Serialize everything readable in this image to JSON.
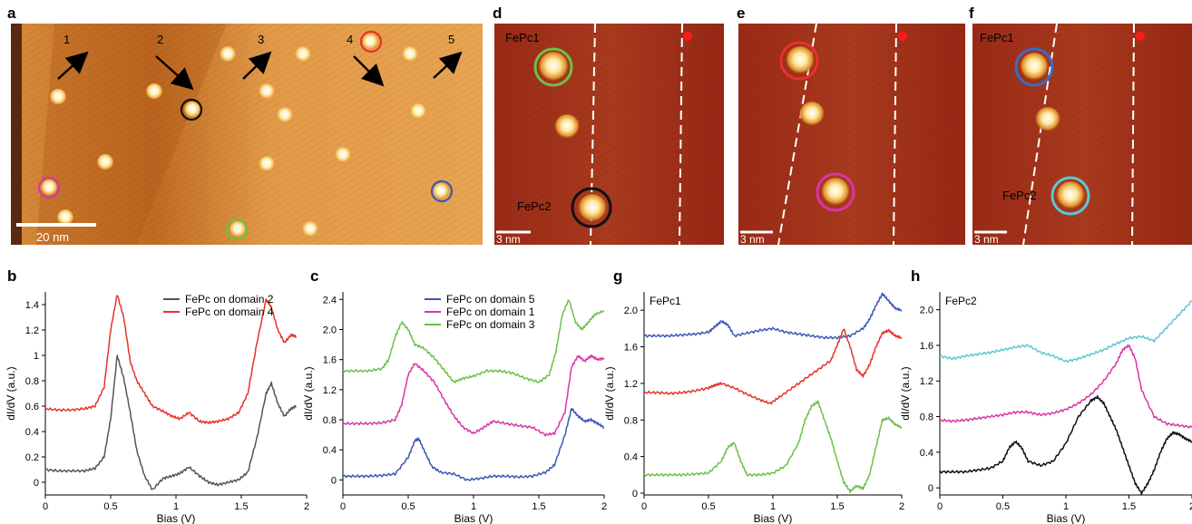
{
  "panel_labels": {
    "a": "a",
    "b": "b",
    "c": "c",
    "d": "d",
    "e": "e",
    "f": "f",
    "g": "g",
    "h": "h"
  },
  "panel_a": {
    "domain_numbers": [
      "1",
      "2",
      "3",
      "4",
      "5"
    ],
    "scale_bar": "20 nm",
    "colors": {
      "background": "#d88a3a",
      "dark_band": "#b8621e",
      "molecule": "#fff3c0",
      "ring_black": "#111111",
      "ring_red": "#e8312a",
      "ring_magenta": "#d935a8",
      "ring_blue": "#3a58b8",
      "ring_green": "#6cc04a"
    }
  },
  "panel_d": {
    "label_top": "FePc1",
    "label_bottom": "FePc2",
    "scale_bar": "3 nm"
  },
  "panel_e": {
    "scale_bar": "3 nm"
  },
  "panel_f": {
    "label_top": "FePc1",
    "label_bottom": "FePc2",
    "scale_bar": "3 nm"
  },
  "chart_data": [
    {
      "panel": "b",
      "type": "line",
      "xlabel": "Bias (V)",
      "ylabel": "dI/dV (a.u.)",
      "xlim": [
        0,
        2
      ],
      "ylim": [
        -0.1,
        1.5
      ],
      "xticks": [
        "0",
        "0.5",
        "1",
        "1.5",
        "2"
      ],
      "yticks": [
        "0",
        "0.2",
        "0.4",
        "0.6",
        "0.8",
        "1",
        "1.2",
        "1.4"
      ],
      "legend_position": "top-right",
      "series": [
        {
          "name": "FePc on domain 2",
          "color": "#555555",
          "x": [
            0,
            0.1,
            0.2,
            0.3,
            0.38,
            0.45,
            0.5,
            0.55,
            0.6,
            0.65,
            0.7,
            0.76,
            0.82,
            0.9,
            0.97,
            1.03,
            1.1,
            1.18,
            1.25,
            1.32,
            1.4,
            1.48,
            1.55,
            1.62,
            1.69,
            1.73,
            1.78,
            1.83,
            1.88,
            1.92
          ],
          "y": [
            0.1,
            0.09,
            0.09,
            0.09,
            0.11,
            0.2,
            0.5,
            1.0,
            0.82,
            0.55,
            0.25,
            0.05,
            -0.06,
            0.03,
            0.05,
            0.07,
            0.12,
            0.05,
            0.0,
            -0.02,
            0.0,
            0.02,
            0.08,
            0.35,
            0.7,
            0.78,
            0.62,
            0.52,
            0.58,
            0.6
          ]
        },
        {
          "name": "FePc on domain 4",
          "color": "#e8312a",
          "x": [
            0,
            0.1,
            0.2,
            0.3,
            0.38,
            0.45,
            0.5,
            0.55,
            0.6,
            0.65,
            0.7,
            0.76,
            0.82,
            0.9,
            0.97,
            1.03,
            1.1,
            1.18,
            1.25,
            1.32,
            1.4,
            1.48,
            1.55,
            1.62,
            1.69,
            1.73,
            1.78,
            1.83,
            1.88,
            1.92
          ],
          "y": [
            0.58,
            0.57,
            0.57,
            0.58,
            0.6,
            0.75,
            1.2,
            1.48,
            1.3,
            0.95,
            0.8,
            0.7,
            0.6,
            0.56,
            0.52,
            0.5,
            0.55,
            0.48,
            0.47,
            0.48,
            0.5,
            0.55,
            0.7,
            1.1,
            1.44,
            1.38,
            1.2,
            1.1,
            1.16,
            1.15
          ]
        }
      ]
    },
    {
      "panel": "c",
      "type": "line",
      "xlabel": "Bias (V)",
      "ylabel": "dI/dV (a.u.)",
      "xlim": [
        0,
        2
      ],
      "ylim": [
        -0.2,
        2.5
      ],
      "xticks": [
        "0",
        "0.5",
        "1",
        "1.5",
        "2"
      ],
      "yticks": [
        "0",
        "0.4",
        "0.8",
        "1.2",
        "1.6",
        "2.0",
        "2.4"
      ],
      "legend_position": "top-right",
      "series": [
        {
          "name": "FePc on domain 5",
          "color": "#3a58b8",
          "x": [
            0,
            0.1,
            0.2,
            0.3,
            0.4,
            0.5,
            0.55,
            0.58,
            0.62,
            0.68,
            0.75,
            0.85,
            0.95,
            1.05,
            1.15,
            1.25,
            1.35,
            1.45,
            1.55,
            1.62,
            1.7,
            1.75,
            1.8,
            1.85,
            1.9,
            1.95,
            2.0
          ],
          "y": [
            0.05,
            0.05,
            0.05,
            0.06,
            0.08,
            0.3,
            0.52,
            0.55,
            0.4,
            0.18,
            0.1,
            0.08,
            0.0,
            0.02,
            0.05,
            0.05,
            0.04,
            0.05,
            0.1,
            0.2,
            0.6,
            0.95,
            0.85,
            0.78,
            0.8,
            0.75,
            0.7
          ]
        },
        {
          "name": "FePc on domain 1",
          "color": "#d935a8",
          "x": [
            0,
            0.1,
            0.2,
            0.3,
            0.4,
            0.45,
            0.5,
            0.55,
            0.62,
            0.7,
            0.78,
            0.85,
            0.92,
            1.0,
            1.08,
            1.15,
            1.25,
            1.35,
            1.45,
            1.55,
            1.62,
            1.7,
            1.75,
            1.8,
            1.85,
            1.9,
            1.95,
            2.0
          ],
          "y": [
            0.75,
            0.75,
            0.75,
            0.76,
            0.8,
            1.0,
            1.4,
            1.55,
            1.45,
            1.3,
            1.05,
            0.85,
            0.7,
            0.62,
            0.7,
            0.78,
            0.75,
            0.72,
            0.7,
            0.6,
            0.62,
            0.9,
            1.5,
            1.65,
            1.58,
            1.65,
            1.6,
            1.62
          ]
        },
        {
          "name": "FePc on domain 3",
          "color": "#6cc04a",
          "x": [
            0,
            0.1,
            0.2,
            0.3,
            0.35,
            0.4,
            0.45,
            0.5,
            0.55,
            0.62,
            0.7,
            0.78,
            0.85,
            0.92,
            1.0,
            1.1,
            1.2,
            1.3,
            1.4,
            1.5,
            1.58,
            1.63,
            1.68,
            1.73,
            1.78,
            1.83,
            1.88,
            1.93,
            2.0
          ],
          "y": [
            1.45,
            1.45,
            1.45,
            1.48,
            1.6,
            1.9,
            2.1,
            2.0,
            1.8,
            1.75,
            1.62,
            1.45,
            1.3,
            1.35,
            1.38,
            1.45,
            1.45,
            1.42,
            1.35,
            1.3,
            1.4,
            1.7,
            2.2,
            2.4,
            2.1,
            2.0,
            2.1,
            2.2,
            2.25
          ]
        }
      ]
    },
    {
      "panel": "g",
      "type": "line",
      "title": "FePc1",
      "xlabel": "Bias (V)",
      "ylabel": "dI/dV (a.u.)",
      "xlim": [
        0,
        2
      ],
      "ylim": [
        -0.02,
        2.2
      ],
      "xticks": [
        "0",
        "0.5",
        "1",
        "1.5",
        "2"
      ],
      "yticks": [
        "0",
        "0.4",
        "0.8",
        "1.2",
        "1.6",
        "2.0"
      ],
      "series": [
        {
          "name": "",
          "color": "#3a58b8",
          "x": [
            0,
            0.1,
            0.2,
            0.3,
            0.4,
            0.5,
            0.55,
            0.6,
            0.65,
            0.7,
            0.8,
            0.9,
            1.0,
            1.1,
            1.2,
            1.3,
            1.4,
            1.5,
            1.6,
            1.7,
            1.75,
            1.8,
            1.85,
            1.9,
            1.95,
            2.0
          ],
          "y": [
            1.72,
            1.72,
            1.72,
            1.73,
            1.74,
            1.76,
            1.82,
            1.88,
            1.84,
            1.72,
            1.75,
            1.78,
            1.8,
            1.76,
            1.74,
            1.72,
            1.7,
            1.7,
            1.72,
            1.8,
            1.9,
            2.05,
            2.18,
            2.1,
            2.02,
            2.0
          ]
        },
        {
          "name": "",
          "color": "#e8312a",
          "x": [
            0,
            0.1,
            0.2,
            0.3,
            0.4,
            0.5,
            0.55,
            0.6,
            0.7,
            0.8,
            0.9,
            0.98,
            1.05,
            1.15,
            1.25,
            1.35,
            1.45,
            1.5,
            1.55,
            1.6,
            1.65,
            1.7,
            1.75,
            1.8,
            1.85,
            1.9,
            1.95,
            2.0
          ],
          "y": [
            1.1,
            1.1,
            1.09,
            1.1,
            1.12,
            1.15,
            1.18,
            1.2,
            1.15,
            1.08,
            1.02,
            0.98,
            1.05,
            1.15,
            1.25,
            1.35,
            1.45,
            1.62,
            1.8,
            1.6,
            1.35,
            1.28,
            1.4,
            1.6,
            1.75,
            1.78,
            1.72,
            1.7
          ]
        },
        {
          "name": "",
          "color": "#6cc04a",
          "x": [
            0,
            0.1,
            0.2,
            0.3,
            0.4,
            0.5,
            0.6,
            0.65,
            0.7,
            0.75,
            0.8,
            0.9,
            1.0,
            1.1,
            1.2,
            1.25,
            1.3,
            1.35,
            1.4,
            1.45,
            1.5,
            1.55,
            1.6,
            1.65,
            1.7,
            1.75,
            1.8,
            1.85,
            1.9,
            1.95,
            2.0
          ],
          "y": [
            0.2,
            0.2,
            0.2,
            0.2,
            0.21,
            0.22,
            0.35,
            0.5,
            0.55,
            0.35,
            0.2,
            0.2,
            0.22,
            0.3,
            0.55,
            0.8,
            0.95,
            1.0,
            0.8,
            0.6,
            0.35,
            0.12,
            0.02,
            0.08,
            0.05,
            0.2,
            0.5,
            0.8,
            0.82,
            0.75,
            0.72
          ]
        }
      ]
    },
    {
      "panel": "h",
      "type": "line",
      "title": "FePc2",
      "xlabel": "Bias (V)",
      "ylabel": "dI/dV (a.u.)",
      "xlim": [
        0,
        2
      ],
      "ylim": [
        -0.08,
        2.2
      ],
      "xticks": [
        "0",
        "0.5",
        "1",
        "1.5",
        "2"
      ],
      "yticks": [
        "0",
        "0.4",
        "0.8",
        "1.2",
        "1.6",
        "2.0"
      ],
      "series": [
        {
          "name": "",
          "color": "#5bc8d6",
          "x": [
            0,
            0.1,
            0.2,
            0.3,
            0.4,
            0.5,
            0.6,
            0.7,
            0.8,
            0.9,
            1.0,
            1.1,
            1.2,
            1.3,
            1.4,
            1.5,
            1.6,
            1.7,
            1.8,
            1.9,
            2.0
          ],
          "y": [
            1.48,
            1.45,
            1.48,
            1.5,
            1.52,
            1.55,
            1.58,
            1.6,
            1.52,
            1.48,
            1.42,
            1.45,
            1.5,
            1.55,
            1.62,
            1.68,
            1.7,
            1.65,
            1.8,
            1.95,
            2.1
          ]
        },
        {
          "name": "",
          "color": "#d935a8",
          "x": [
            0,
            0.1,
            0.2,
            0.3,
            0.4,
            0.5,
            0.6,
            0.7,
            0.8,
            0.9,
            1.0,
            1.1,
            1.2,
            1.3,
            1.4,
            1.45,
            1.5,
            1.55,
            1.6,
            1.7,
            1.8,
            1.9,
            2.0
          ],
          "y": [
            0.76,
            0.75,
            0.76,
            0.78,
            0.8,
            0.82,
            0.85,
            0.85,
            0.82,
            0.84,
            0.88,
            0.95,
            1.05,
            1.2,
            1.4,
            1.55,
            1.6,
            1.45,
            1.1,
            0.8,
            0.72,
            0.7,
            0.68
          ]
        },
        {
          "name": "",
          "color": "#111111",
          "x": [
            0,
            0.1,
            0.2,
            0.3,
            0.4,
            0.5,
            0.55,
            0.6,
            0.65,
            0.7,
            0.8,
            0.9,
            1.0,
            1.1,
            1.2,
            1.25,
            1.3,
            1.35,
            1.4,
            1.45,
            1.5,
            1.55,
            1.6,
            1.65,
            1.7,
            1.75,
            1.8,
            1.85,
            1.9,
            1.95,
            2.0
          ],
          "y": [
            0.18,
            0.18,
            0.18,
            0.2,
            0.22,
            0.3,
            0.45,
            0.52,
            0.45,
            0.3,
            0.25,
            0.3,
            0.5,
            0.8,
            0.98,
            1.02,
            0.95,
            0.8,
            0.65,
            0.45,
            0.25,
            0.05,
            -0.06,
            0.05,
            0.2,
            0.4,
            0.55,
            0.62,
            0.6,
            0.55,
            0.52
          ]
        }
      ]
    }
  ]
}
